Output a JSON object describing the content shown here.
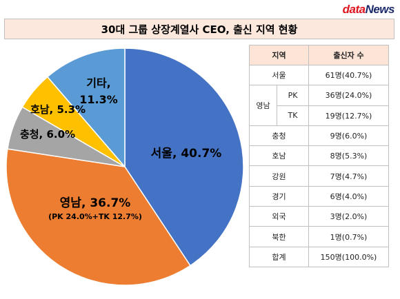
{
  "brand": {
    "prefix": "data",
    "suffix": "News"
  },
  "title": "30대 그룹 상장계열사 CEO, 출신 지역 현황",
  "chart_data": {
    "type": "pie",
    "title": "30대 그룹 상장계열사 CEO, 출신 지역 현황",
    "slices": [
      {
        "label": "서울",
        "value": 40.7,
        "color": "#4472c4",
        "text": "서울, 40.7%"
      },
      {
        "label": "영남",
        "value": 36.7,
        "color": "#ed7d31",
        "text": "영남, 36.7%",
        "subtext": "(PK 24.0%+TK 12.7%)"
      },
      {
        "label": "충청",
        "value": 6.0,
        "color": "#a5a5a5",
        "text": "충청, 6.0%"
      },
      {
        "label": "호남",
        "value": 5.3,
        "color": "#ffc000",
        "text": "호남, 5.3%"
      },
      {
        "label": "기타",
        "value": 11.3,
        "color": "#5b9bd5",
        "text": "기타,",
        "text2": "11.3%"
      }
    ]
  },
  "table": {
    "headers": [
      "지역",
      "출신자 수"
    ],
    "rows": [
      {
        "region": "서울",
        "value": "61명(40.7%)"
      },
      {
        "region": "영남",
        "sub": "PK",
        "value": "36명(24.0%)"
      },
      {
        "sub": "TK",
        "value": "19명(12.7%)"
      },
      {
        "region": "충청",
        "value": "9명(6.0%)"
      },
      {
        "region": "호남",
        "value": "8명(5.3%)"
      },
      {
        "region": "강원",
        "value": "7명(4.7%)"
      },
      {
        "region": "경기",
        "value": "6명(4.0%)"
      },
      {
        "region": "외국",
        "value": "3명(2.0%)"
      },
      {
        "region": "북한",
        "value": "1명(0.7%)"
      },
      {
        "region": "합계",
        "value": "150명(100.0%)"
      }
    ]
  }
}
